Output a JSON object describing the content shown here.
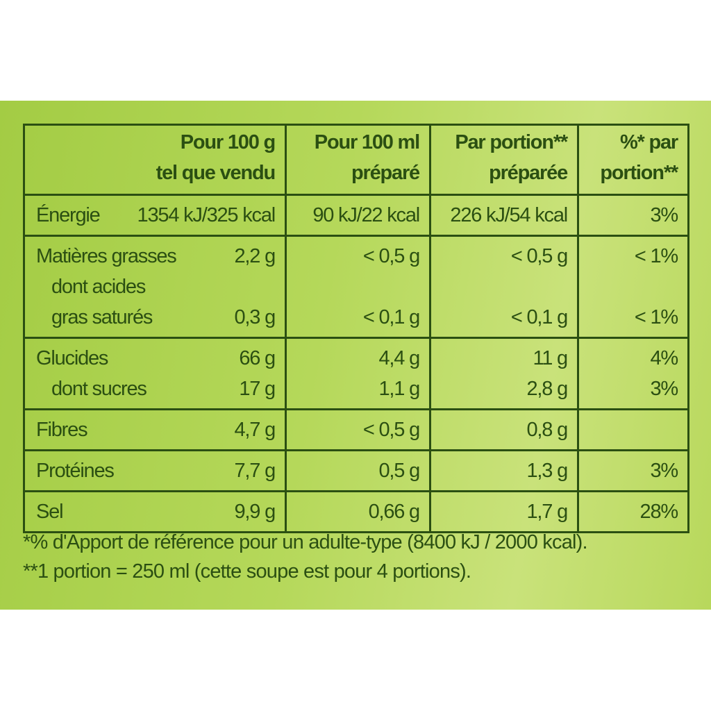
{
  "table": {
    "header": [
      [
        "Pour 100 g",
        "tel que vendu"
      ],
      [
        "Pour 100 ml",
        "préparé"
      ],
      [
        "Par portion**",
        "préparée"
      ],
      [
        "%* par",
        "portion**"
      ]
    ],
    "groups": [
      {
        "lines": [
          {
            "label": "Énergie",
            "values": [
              "1354 kJ/325 kcal",
              "90 kJ/22 kcal",
              "226 kJ/54 kcal",
              "3%"
            ]
          }
        ]
      },
      {
        "lines": [
          {
            "label": "Matières grasses",
            "values": [
              "2,2 g",
              "< 0,5 g",
              "< 0,5 g",
              "< 1%"
            ]
          },
          {
            "label": "dont acides",
            "indent": true
          },
          {
            "label": "gras saturés",
            "indent": true,
            "values": [
              "0,3 g",
              "< 0,1 g",
              "< 0,1 g",
              "< 1%"
            ]
          }
        ]
      },
      {
        "lines": [
          {
            "label": "Glucides",
            "values": [
              "66 g",
              "4,4 g",
              "11 g",
              "4%"
            ]
          },
          {
            "label": "dont sucres",
            "indent": true,
            "values": [
              "17 g",
              "1,1 g",
              "2,8 g",
              "3%"
            ]
          }
        ]
      },
      {
        "lines": [
          {
            "label": "Fibres",
            "values": [
              "4,7 g",
              "< 0,5 g",
              "0,8 g",
              null
            ]
          }
        ]
      },
      {
        "lines": [
          {
            "label": "Protéines",
            "values": [
              "7,7 g",
              "0,5 g",
              "1,3 g",
              "3%"
            ]
          }
        ]
      },
      {
        "lines": [
          {
            "label": "Sel",
            "values": [
              "9,9 g",
              "0,66 g",
              "1,7 g",
              "28%"
            ]
          }
        ]
      }
    ]
  },
  "footnotes": [
    "*% d'Apport de référence pour un adulte-type (8400 kJ / 2000 kcal).",
    "**1 portion = 250 ml (cette soupe est pour 4 portions)."
  ]
}
